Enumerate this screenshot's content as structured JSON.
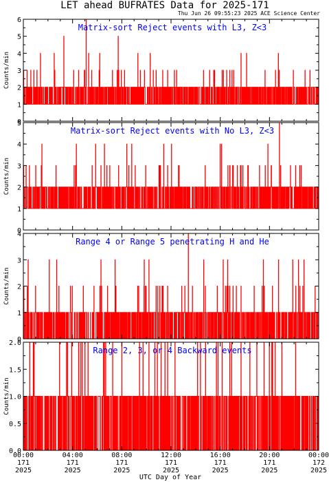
{
  "header": {
    "title": "LET ahead BUFRATES Data for 2025-171",
    "timestamp": "Thu Jun 26 09:55:23 2025 ACE Science Center"
  },
  "x_axis": {
    "label": "UTC Day of Year",
    "ticks": [
      {
        "time": "00:00",
        "day": "171",
        "year": "2025"
      },
      {
        "time": "04:00",
        "day": "171",
        "year": "2025"
      },
      {
        "time": "08:00",
        "day": "171",
        "year": "2025"
      },
      {
        "time": "12:00",
        "day": "171",
        "year": "2025"
      },
      {
        "time": "16:00",
        "day": "171",
        "year": "2025"
      },
      {
        "time": "20:00",
        "day": "171",
        "year": "2025"
      },
      {
        "time": "00:00",
        "day": "172",
        "year": "2025"
      }
    ]
  },
  "colors": {
    "series": "#ff0000",
    "panel_title": "#0000ff",
    "axes": "#000000",
    "background": "#ffffff"
  },
  "chart_data": [
    {
      "type": "line",
      "title": "Matrix-sort Reject events with L3, Z<3",
      "ylabel": "Counts/min",
      "ylim": [
        0,
        6
      ],
      "yticks": [
        "0",
        "1",
        "2",
        "3",
        "4",
        "5",
        "6"
      ],
      "baseline": [
        1,
        2
      ],
      "spikes": [
        [
          0.6,
          3
        ],
        [
          1.4,
          4
        ],
        [
          3.3,
          5
        ],
        [
          5.1,
          6
        ],
        [
          7.7,
          5
        ],
        [
          9.3,
          4
        ],
        [
          2.5,
          4
        ],
        [
          6.2,
          4
        ]
      ],
      "xlim_hours": [
        0,
        24
      ]
    },
    {
      "type": "line",
      "title": "Matrix-sort Reject events with No L3, Z<3",
      "ylabel": "Counts/min",
      "ylim": [
        0,
        5
      ],
      "yticks": [
        "0",
        "1",
        "2",
        "3",
        "4",
        "5"
      ],
      "baseline": [
        1,
        2
      ],
      "spikes": [
        [
          1.5,
          4
        ],
        [
          4.3,
          4
        ],
        [
          6.6,
          4
        ],
        [
          8.4,
          4
        ],
        [
          11.4,
          4
        ],
        [
          16.1,
          4
        ],
        [
          20.8,
          5
        ],
        [
          21.7,
          3
        ]
      ],
      "xlim_hours": [
        0,
        24
      ]
    },
    {
      "type": "line",
      "title": "Range 4 or Range 5 penetrating H and He",
      "ylabel": "Counts/min",
      "ylim": [
        0,
        4
      ],
      "yticks": [
        "0",
        "1",
        "2",
        "3",
        "4"
      ],
      "baseline": [
        0,
        1
      ],
      "spikes": [
        [
          2.1,
          3
        ],
        [
          6.3,
          3
        ],
        [
          10.2,
          3
        ],
        [
          13.4,
          4
        ],
        [
          16.6,
          3
        ],
        [
          19.5,
          3
        ],
        [
          22.8,
          3
        ]
      ],
      "xlim_hours": [
        0,
        24
      ]
    },
    {
      "type": "line",
      "title": "Range 2, 3, or 4 Backward events",
      "ylabel": "Counts/min",
      "ylim": [
        0,
        2
      ],
      "yticks": [
        "0.0",
        "0.5",
        "1.0",
        "1.5",
        "2.0"
      ],
      "baseline": [
        0,
        1
      ],
      "spikes": [
        [
          8.0,
          2
        ],
        [
          11.5,
          2
        ],
        [
          21.0,
          2
        ]
      ],
      "xlim_hours": [
        0,
        24
      ]
    }
  ]
}
